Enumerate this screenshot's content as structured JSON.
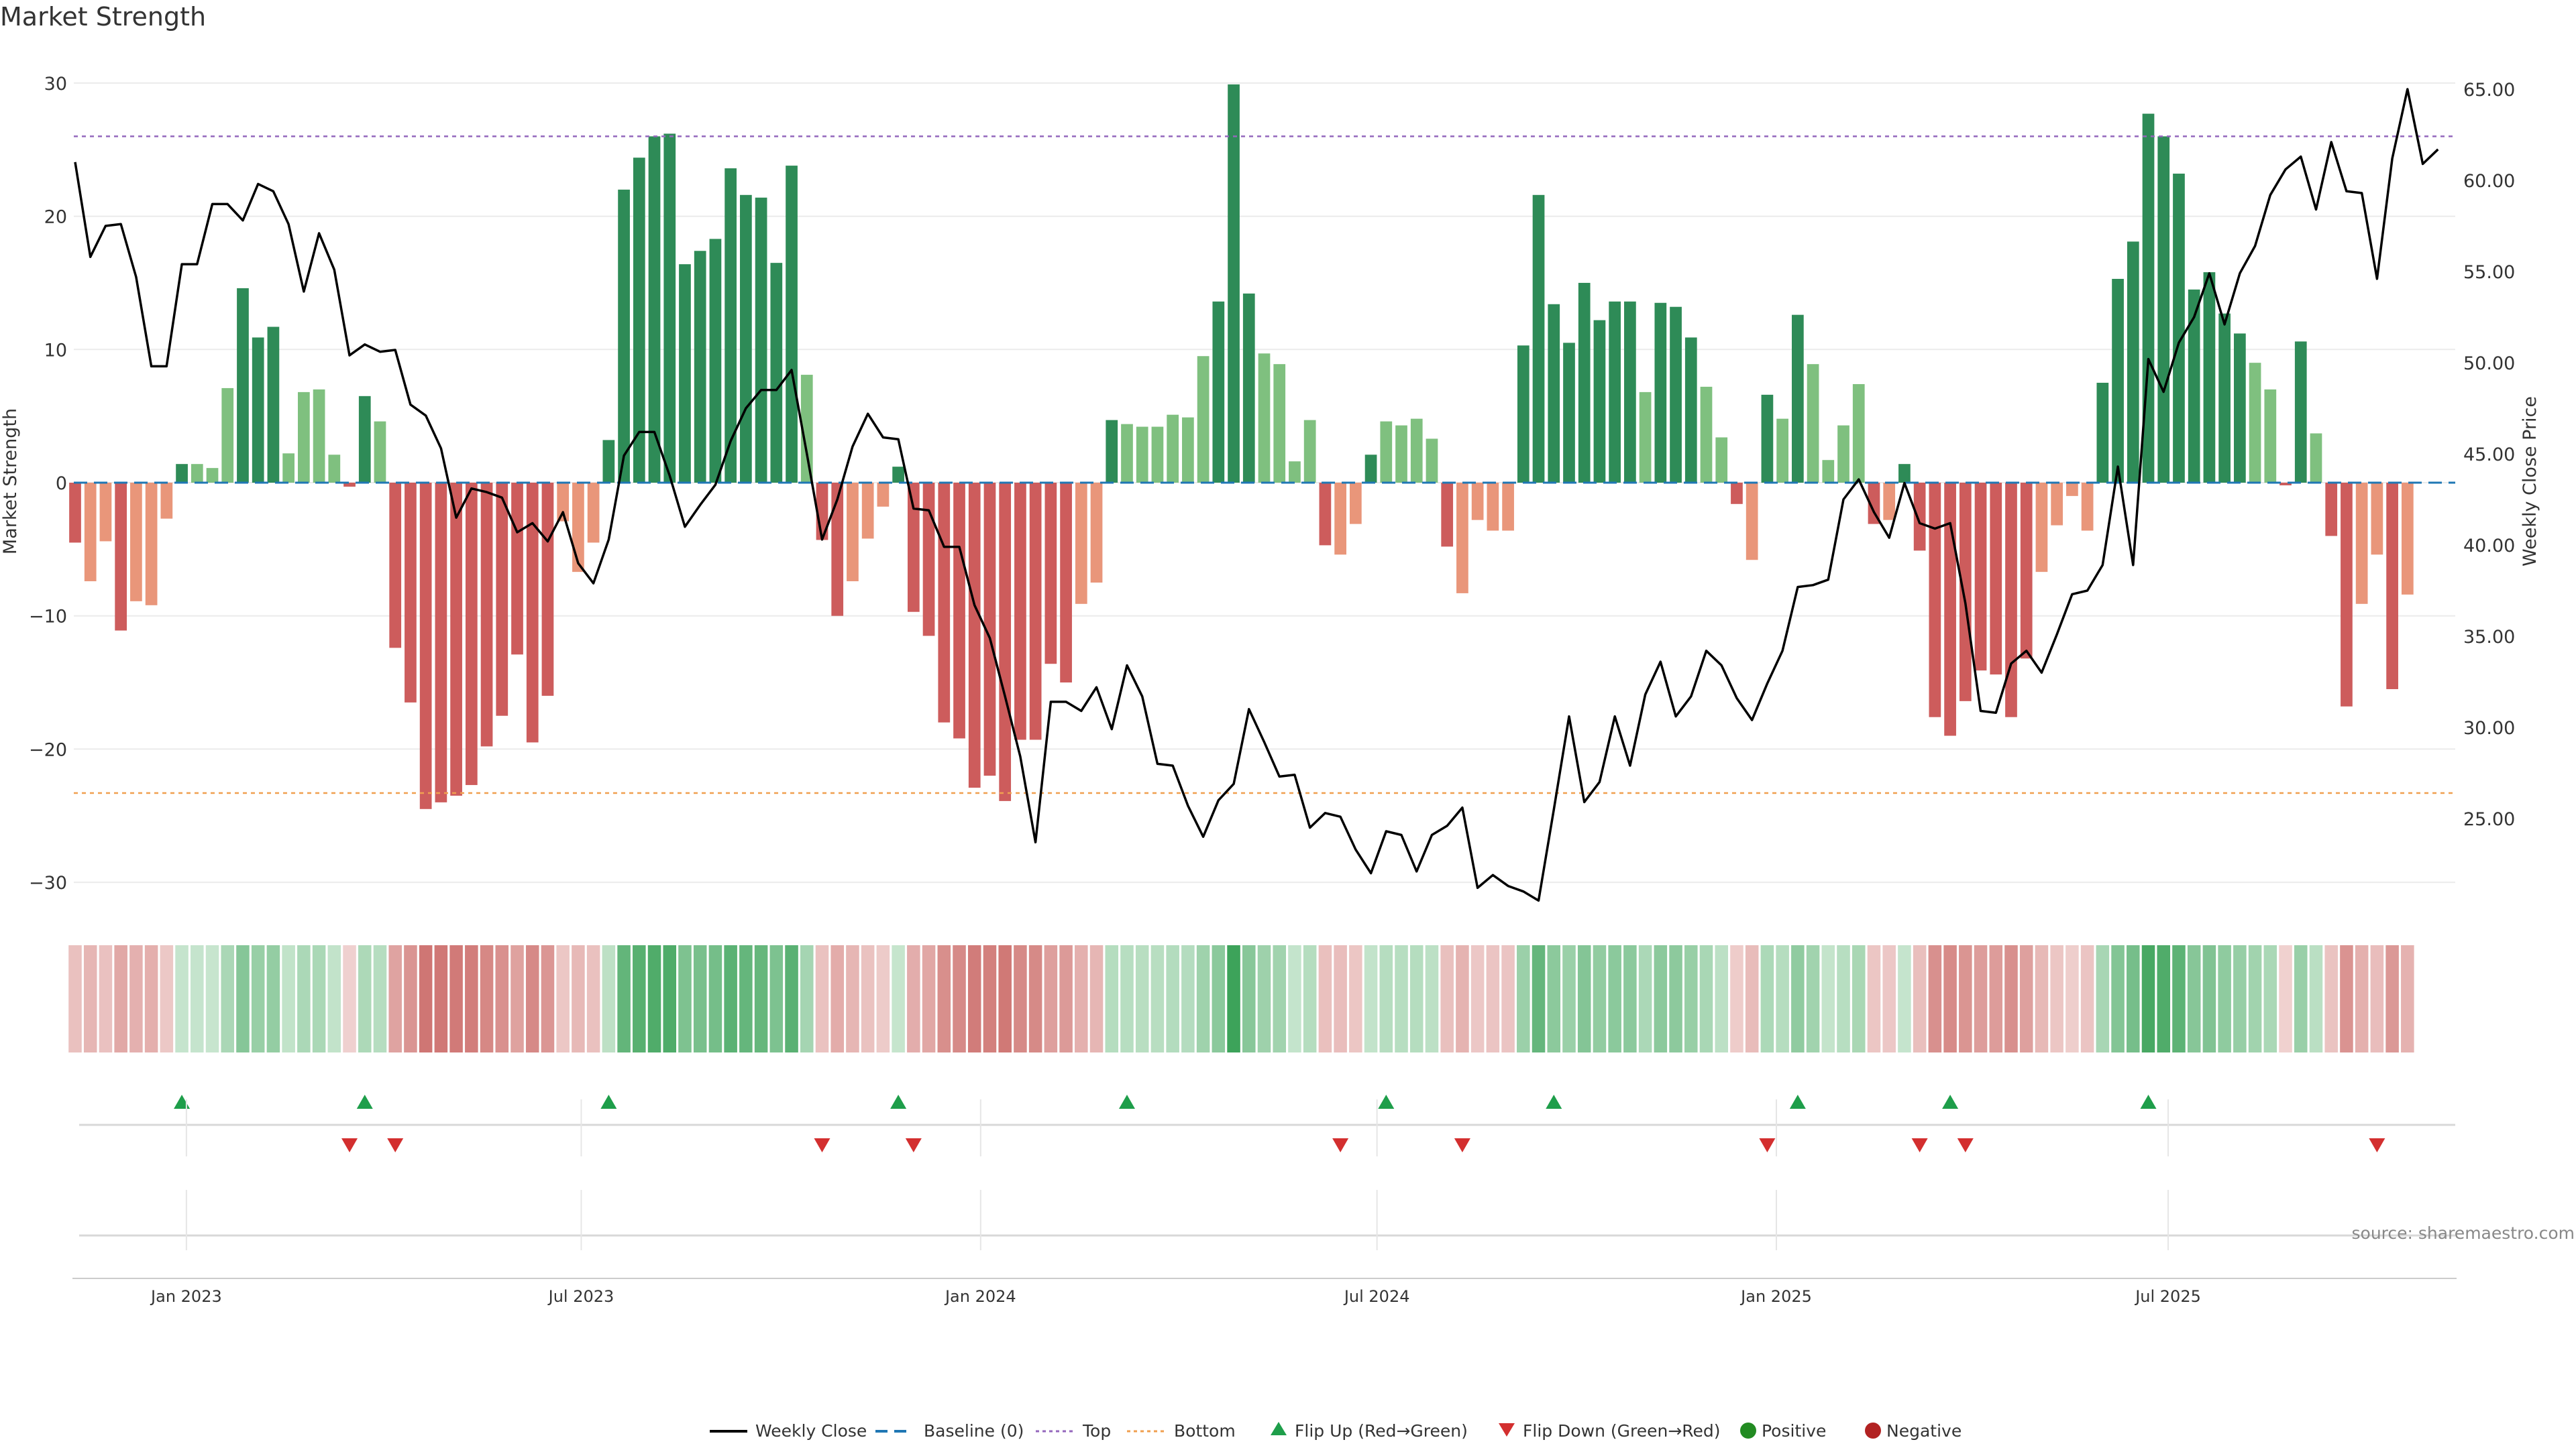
{
  "title": "Market Strength",
  "source": "source: sharemaestro.com",
  "colors": {
    "pos_strong": "#2e8b57",
    "pos_weak": "#7fc07f",
    "neg_strong": "#cd5c5c",
    "neg_weak": "#e9967a",
    "line": "#000000",
    "baseline": "#1f77b4",
    "top": "#9467bd",
    "bottom": "#f0a050",
    "flip_up": "#1e9e4a",
    "flip_down": "#d32f2f",
    "positive": "#228b22",
    "negative": "#b22222",
    "grid": "#ebebeb"
  },
  "chart_data": {
    "type": "bar",
    "title": "Market Strength",
    "ylabel": "Market Strength",
    "y2label": "Weekly Close Price",
    "ylim": [
      -32,
      30
    ],
    "y2lim": [
      20.5,
      65
    ],
    "yticks": [
      "30",
      "20",
      "10",
      "0",
      "−10",
      "−20",
      "−30"
    ],
    "y2ticks": [
      "65.00",
      "60.00",
      "55.00",
      "50.00",
      "45.00",
      "40.00",
      "35.00",
      "30.00",
      "25.00"
    ],
    "xticks": [
      "Jan 2023",
      "Jul 2023",
      "Jan 2024",
      "Jul 2024",
      "Jan 2025",
      "Jul 2025"
    ],
    "weeks": 157,
    "top_level": 26,
    "bottom_level": -23.3,
    "strength": [
      -4.5,
      -7.4,
      -4.4,
      -11.1,
      -8.9,
      -9.2,
      -2.7,
      1.4,
      1.4,
      1.1,
      7.1,
      14.6,
      10.9,
      11.7,
      2.2,
      6.8,
      7.0,
      2.1,
      -0.3,
      6.5,
      4.6,
      -12.4,
      -16.5,
      -24.5,
      -24.0,
      -23.5,
      -22.7,
      -19.8,
      -17.5,
      -12.9,
      -19.5,
      -16.0,
      -2.9,
      -6.7,
      -4.5,
      3.2,
      22.0,
      24.4,
      26.0,
      26.2,
      16.4,
      17.4,
      18.3,
      23.6,
      21.6,
      21.4,
      16.5,
      23.8,
      8.1,
      -4.3,
      -10.0,
      -7.4,
      -4.2,
      -1.8,
      1.2,
      -9.7,
      -11.5,
      -18.0,
      -19.2,
      -22.9,
      -22.0,
      -23.9,
      -19.3,
      -19.3,
      -13.6,
      -15.0,
      -9.1,
      -7.5,
      4.7,
      4.4,
      4.2,
      4.2,
      5.1,
      4.9,
      9.5,
      13.6,
      29.9,
      14.2,
      9.7,
      8.9,
      1.6,
      4.7,
      -4.7,
      -5.4,
      -3.1,
      2.1,
      4.6,
      4.3,
      4.8,
      3.3,
      -4.8,
      -8.3,
      -2.8,
      -3.6,
      -3.6,
      10.3,
      21.6,
      13.4,
      10.5,
      15.0,
      12.2,
      13.6,
      13.6,
      6.8,
      13.5,
      13.2,
      10.9,
      7.2,
      3.4,
      -1.6,
      -5.8,
      6.6,
      4.8,
      12.6,
      8.9,
      1.7,
      4.3,
      7.4,
      -3.1,
      -2.8,
      1.4,
      -5.1,
      -17.6,
      -19.0,
      -16.4,
      -14.1,
      -14.4,
      -17.6,
      -13.2,
      -6.7,
      -3.2,
      -1.0,
      -3.6,
      7.5,
      15.3,
      18.1,
      27.7,
      26.0,
      23.2,
      14.5,
      15.8,
      12.7,
      11.2,
      9.0,
      7.0,
      -0.2,
      10.6,
      3.7,
      -4.0,
      -16.8,
      -9.1,
      -5.4,
      -15.5,
      -8.4
    ],
    "weekly_close": [
      61.0,
      55.8,
      57.5,
      57.6,
      54.7,
      49.8,
      49.8,
      55.4,
      55.4,
      58.7,
      58.7,
      57.8,
      59.8,
      59.4,
      57.6,
      53.9,
      57.1,
      55.1,
      50.4,
      51.0,
      50.6,
      50.7,
      47.7,
      47.1,
      45.3,
      41.5,
      43.1,
      42.9,
      42.6,
      40.7,
      41.2,
      40.2,
      41.8,
      39.0,
      37.9,
      40.3,
      44.9,
      46.2,
      46.2,
      43.8,
      41.0,
      42.2,
      43.3,
      45.7,
      47.5,
      48.5,
      48.5,
      49.6,
      45.0,
      40.3,
      42.5,
      45.4,
      47.2,
      45.9,
      45.8,
      42.0,
      41.9,
      39.9,
      39.9,
      36.7,
      34.9,
      31.7,
      28.4,
      23.7,
      31.4,
      31.4,
      30.9,
      32.2,
      29.9,
      33.4,
      31.7,
      28.0,
      27.9,
      25.7,
      24.0,
      26.0,
      26.9,
      31.0,
      29.2,
      27.3,
      27.4,
      24.5,
      25.3,
      25.1,
      23.3,
      22.0,
      24.3,
      24.1,
      22.1,
      24.1,
      24.6,
      25.6,
      21.2,
      21.9,
      21.3,
      21.0,
      20.5,
      25.5,
      30.6,
      25.9,
      27.0,
      30.6,
      27.9,
      31.8,
      33.6,
      30.6,
      31.7,
      34.2,
      33.4,
      31.6,
      30.4,
      32.4,
      34.2,
      37.7,
      37.8,
      38.1,
      42.5,
      43.6,
      41.8,
      40.4,
      43.4,
      41.2,
      40.9,
      41.2,
      36.8,
      30.9,
      30.8,
      33.5,
      34.2,
      33.0,
      35.1,
      37.3,
      37.5,
      38.9,
      44.3,
      38.9,
      50.2,
      48.4,
      51.1,
      52.5,
      54.9,
      52.1,
      54.9,
      56.4,
      59.2,
      60.6,
      61.3,
      58.4,
      62.1,
      59.4,
      59.3,
      54.6,
      61.2,
      65.0,
      60.9,
      61.7
    ],
    "flip_up": [
      7,
      19,
      35,
      54,
      69,
      86,
      97,
      113,
      123,
      136
    ],
    "flip_down": [
      18,
      21,
      49,
      55,
      83,
      91,
      111,
      121,
      124,
      151
    ],
    "legend": [
      "Weekly Close",
      "Baseline (0)",
      "Top",
      "Bottom",
      "Flip Up (Red→Green)",
      "Flip Down (Green→Red)",
      "Positive",
      "Negative"
    ]
  }
}
